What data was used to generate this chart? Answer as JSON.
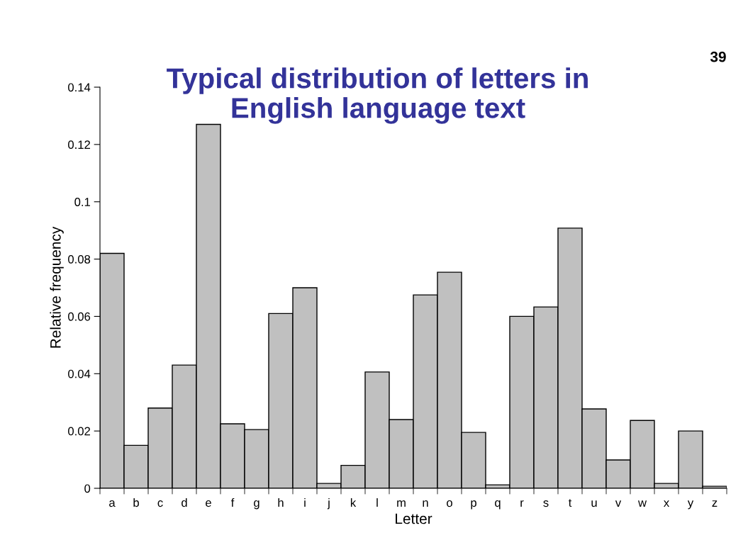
{
  "chart_data": {
    "type": "bar",
    "title": "Typical distribution of letters in\nEnglish language text",
    "xlabel": "Letter",
    "ylabel": "Relative frequency",
    "categories": [
      "a",
      "b",
      "c",
      "d",
      "e",
      "f",
      "g",
      "h",
      "i",
      "j",
      "k",
      "l",
      "m",
      "n",
      "o",
      "p",
      "q",
      "r",
      "s",
      "t",
      "u",
      "v",
      "w",
      "x",
      "y",
      "z"
    ],
    "values": [
      0.082,
      0.015,
      0.028,
      0.043,
      0.127,
      0.0225,
      0.0205,
      0.061,
      0.07,
      0.0017,
      0.008,
      0.0406,
      0.024,
      0.0675,
      0.0754,
      0.0195,
      0.0012,
      0.06,
      0.0633,
      0.0908,
      0.0277,
      0.0099,
      0.0237,
      0.0017,
      0.02,
      0.0007
    ],
    "color": "#c0c0c0",
    "ylim": [
      0,
      0.14
    ],
    "yticks": [
      {
        "value": 0,
        "label": "0"
      },
      0.02,
      0.04,
      0.06,
      0.08,
      {
        "value": 0.1,
        "label": "0.1"
      },
      0.12,
      0.14
    ],
    "grid": false,
    "legend": false,
    "annotations": [
      "39"
    ]
  }
}
